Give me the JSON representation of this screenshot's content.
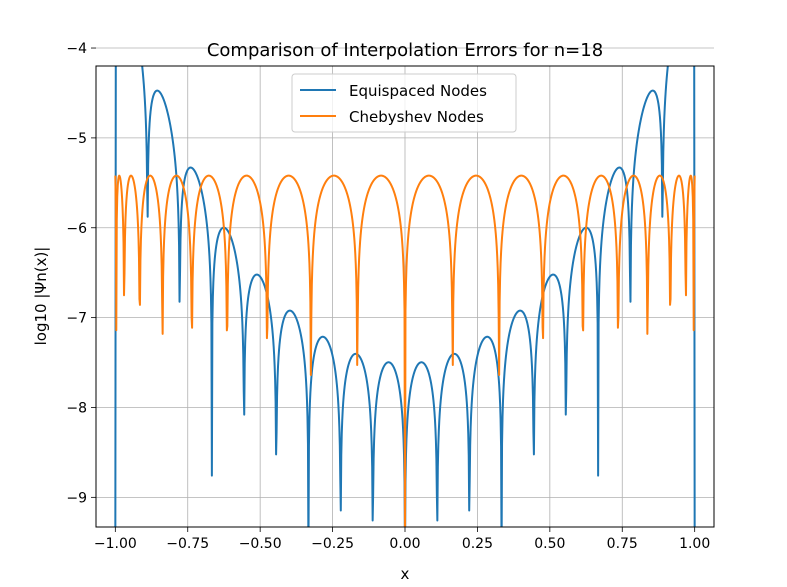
{
  "chart_data": {
    "type": "line",
    "title": "Comparison of Interpolation Errors for n=18",
    "xlabel": "x",
    "ylabel": "log10 |Ψn(x)|",
    "xlim": [
      -1.0667,
      1.0667
    ],
    "ylim": [
      -9.33,
      -4.2
    ],
    "grid": true,
    "legend_position": "upper center",
    "x_ticks": [
      -1.0,
      -0.75,
      -0.5,
      -0.25,
      0.0,
      0.25,
      0.5,
      0.75,
      1.0
    ],
    "x_tick_labels": [
      "−1.00",
      "−0.75",
      "−0.50",
      "−0.25",
      "0.00",
      "0.25",
      "0.50",
      "0.75",
      "1.00"
    ],
    "y_ticks": [
      -9,
      -8,
      -7,
      -6,
      -5,
      -4
    ],
    "y_tick_labels": [
      "−9",
      "−8",
      "−7",
      "−6",
      "−5",
      "−4"
    ],
    "series": [
      {
        "name": "Equispaced Nodes",
        "color": "#1f77b4",
        "function": "log10(abs(prod_{k=0..18}(x - x_k))), x_k = -1 + 2k/18",
        "nodes": [
          -1.0,
          -0.8889,
          -0.7778,
          -0.6667,
          -0.5556,
          -0.4444,
          -0.3333,
          -0.2222,
          -0.1111,
          0.0,
          0.1111,
          0.2222,
          0.3333,
          0.4444,
          0.5556,
          0.6667,
          0.7778,
          0.8889,
          1.0
        ],
        "sample_points": [
          {
            "x": -1.0,
            "y": -4.1
          },
          {
            "x": -0.98,
            "y": -3.35
          },
          {
            "x": -0.89,
            "y": -5.63
          },
          {
            "x": -0.83,
            "y": -4.48
          },
          {
            "x": -0.72,
            "y": -5.33
          },
          {
            "x": -0.61,
            "y": -6.0
          },
          {
            "x": -0.5,
            "y": -6.52
          },
          {
            "x": -0.39,
            "y": -6.92
          },
          {
            "x": -0.28,
            "y": -7.21
          },
          {
            "x": -0.17,
            "y": -7.4
          },
          {
            "x": -0.05,
            "y": -7.49
          },
          {
            "x": 0.0,
            "y": -9.05
          },
          {
            "x": 0.05,
            "y": -7.49
          },
          {
            "x": 0.17,
            "y": -7.4
          },
          {
            "x": 0.28,
            "y": -7.21
          },
          {
            "x": 0.39,
            "y": -6.92
          },
          {
            "x": 0.5,
            "y": -6.52
          },
          {
            "x": 0.61,
            "y": -6.0
          },
          {
            "x": 0.72,
            "y": -5.33
          },
          {
            "x": 0.83,
            "y": -4.48
          },
          {
            "x": 0.98,
            "y": -3.35
          },
          {
            "x": 1.0,
            "y": -4.1
          }
        ]
      },
      {
        "name": "Chebyshev Nodes",
        "color": "#ff7f0e",
        "function": "log10(abs(2^-18 * T_19(x)))",
        "peak_value": -5.42,
        "nodes": [
          -0.9966,
          -0.9694,
          -0.9158,
          -0.8372,
          -0.7357,
          -0.6142,
          -0.4759,
          -0.3247,
          -0.1646,
          0.0,
          0.1646,
          0.3247,
          0.4759,
          0.6142,
          0.7357,
          0.8372,
          0.9158,
          0.9694,
          0.9966
        ]
      }
    ]
  }
}
